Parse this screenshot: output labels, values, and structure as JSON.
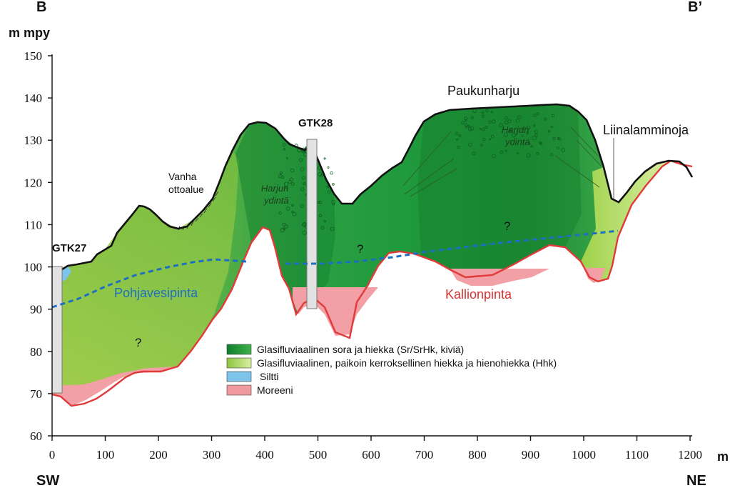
{
  "corners": {
    "top_left": "B",
    "top_right": "B’",
    "bottom_left": "SW",
    "bottom_right": "NE"
  },
  "axes": {
    "y_label": "m mpy",
    "x_unit": "m",
    "y_ticks": [
      "150",
      "140",
      "130",
      "120",
      "110",
      "100",
      "90",
      "80",
      "70",
      "60"
    ],
    "x_ticks": [
      "0",
      "100",
      "200",
      "300",
      "400",
      "500",
      "600",
      "700",
      "800",
      "900",
      "1000",
      "1100",
      "1200"
    ]
  },
  "annotations": {
    "gtk27": "GTK27",
    "gtk28": "GTK28",
    "vanha_line1": "Vanha",
    "vanha_line2": "ottoalue",
    "paukunharju": "Paukunharju",
    "liinalamminoja": "Liinalamminoja",
    "pohjavesipinta": "Pohjavesipinta",
    "kallionpinta": "Kallionpinta",
    "harjun_left_1": "Harjun",
    "harjun_left_2": "ydintä",
    "harjun_right_1": "Harjun",
    "harjun_right_2": "ydintä",
    "q1": "?",
    "q2": "?",
    "q3": "?"
  },
  "legend": [
    {
      "label": "Glasifluviaalinen sora ja hiekka (Sr/SrHk, kiviä)",
      "color": "#1e9a3c"
    },
    {
      "label": "Glasifluviaalinen, paikoin kerroksellinen hiekka ja hienohiekka (Hhk)",
      "color": "#a8d448"
    },
    {
      "label": "Siltti",
      "color": "#7ec4ea"
    },
    {
      "label": "Moreeni",
      "color": "#f09aa0"
    }
  ],
  "colors": {
    "ground_surface": "#111111",
    "bedrock_line": "#e03a3a",
    "water_table": "#1f6fc0",
    "water_label": "#1f6fc0",
    "bedrock_label": "#d93030",
    "borehole": "#e2e2e2"
  },
  "chart_data": {
    "type": "area",
    "title": "",
    "xlabel": "m",
    "ylabel": "m mpy",
    "xlim": [
      0,
      1200
    ],
    "ylim": [
      60,
      150
    ],
    "series": [
      {
        "name": "Pohjavesipinta",
        "x": [
          0,
          100,
          200,
          300,
          350,
          450,
          550,
          650,
          800,
          950,
          1060
        ],
        "y": [
          90,
          94.5,
          99,
          101.5,
          101,
          101,
          101.5,
          103,
          105.5,
          107.5,
          108.5
        ]
      },
      {
        "name": "Kallionpinta",
        "x": [
          0,
          80,
          200,
          300,
          350,
          400,
          430,
          480,
          520,
          560,
          600,
          650,
          700,
          800,
          900,
          950,
          1000,
          1030,
          1060,
          1100,
          1150,
          1200
        ],
        "y": [
          69.5,
          67,
          75,
          87,
          103,
          110,
          100,
          88,
          95,
          83,
          99,
          107,
          104,
          96,
          98,
          104,
          98,
          96,
          105,
          117,
          125,
          124
        ]
      }
    ],
    "boreholes": [
      {
        "name": "GTK27",
        "x": 10,
        "top": 100,
        "bottom": 70
      },
      {
        "name": "GTK28",
        "x": 487,
        "top": 130,
        "bottom": 90
      }
    ]
  }
}
